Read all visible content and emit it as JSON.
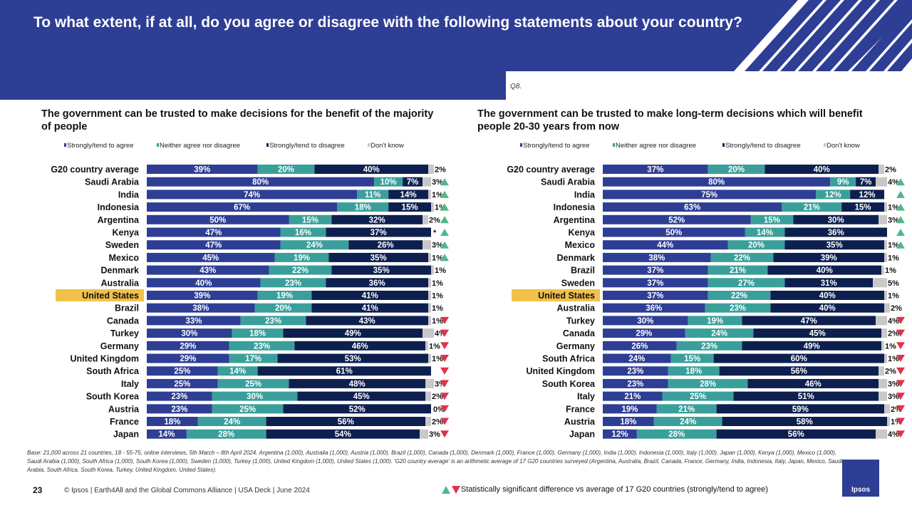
{
  "header": {
    "title": "To what extent, if at all, do you agree or disagree with the following statements about your country?"
  },
  "question_ref": "Q8.",
  "legend": [
    "Strongly/tend to agree",
    "Neither agree nor disagree",
    "Strongly/tend to disagree",
    "Don't know"
  ],
  "colors": {
    "agree": "#2e3e94",
    "neither": "#3a9f9a",
    "disagree": "#0d1f4f",
    "dontknow": "#c8c8c8",
    "up": "#52b788",
    "down": "#e0334a",
    "highlight": "#f0c14b"
  },
  "highlight_country": "United States",
  "chart_data": [
    {
      "type": "bar",
      "stacked": true,
      "orientation": "horizontal",
      "title": "The government can be trusted to make decisions for the benefit of the majority of people",
      "series_names": [
        "Strongly/tend to agree",
        "Neither agree nor disagree",
        "Strongly/tend to disagree",
        "Don't know"
      ],
      "rows": [
        {
          "c": "G20 country average",
          "v": [
            39,
            20,
            40,
            2
          ],
          "l": [
            "39%",
            "20%",
            "40%",
            "2%"
          ],
          "s": ""
        },
        {
          "c": "Saudi Arabia",
          "v": [
            80,
            10,
            7,
            3
          ],
          "l": [
            "80%",
            "10%",
            "7%",
            "3%"
          ],
          "s": "up"
        },
        {
          "c": "India",
          "v": [
            74,
            11,
            14,
            1
          ],
          "l": [
            "74%",
            "11%",
            "14%",
            "1%"
          ],
          "s": "up"
        },
        {
          "c": "Indonesia",
          "v": [
            67,
            18,
            15,
            1
          ],
          "l": [
            "67%",
            "18%",
            "15%",
            "1%"
          ],
          "s": "up"
        },
        {
          "c": "Argentina",
          "v": [
            50,
            15,
            32,
            2
          ],
          "l": [
            "50%",
            "15%",
            "32%",
            "2%"
          ],
          "s": "up"
        },
        {
          "c": "Kenya",
          "v": [
            47,
            16,
            37,
            0
          ],
          "l": [
            "47%",
            "16%",
            "37%",
            "*"
          ],
          "s": "up"
        },
        {
          "c": "Sweden",
          "v": [
            47,
            24,
            26,
            3
          ],
          "l": [
            "47%",
            "24%",
            "26%",
            "3%"
          ],
          "s": "up"
        },
        {
          "c": "Mexico",
          "v": [
            45,
            19,
            35,
            1
          ],
          "l": [
            "45%",
            "19%",
            "35%",
            "1%"
          ],
          "s": "up"
        },
        {
          "c": "Denmark",
          "v": [
            43,
            22,
            35,
            1
          ],
          "l": [
            "43%",
            "22%",
            "35%",
            "1%"
          ],
          "s": ""
        },
        {
          "c": "Australia",
          "v": [
            40,
            23,
            36,
            1
          ],
          "l": [
            "40%",
            "23%",
            "36%",
            "1%"
          ],
          "s": ""
        },
        {
          "c": "United States",
          "v": [
            39,
            19,
            41,
            1
          ],
          "l": [
            "39%",
            "19%",
            "41%",
            "1%"
          ],
          "s": ""
        },
        {
          "c": "Brazil",
          "v": [
            38,
            20,
            41,
            1
          ],
          "l": [
            "38%",
            "20%",
            "41%",
            "1%"
          ],
          "s": ""
        },
        {
          "c": "Canada",
          "v": [
            33,
            23,
            43,
            1
          ],
          "l": [
            "33%",
            "23%",
            "43%",
            "1%"
          ],
          "s": "down"
        },
        {
          "c": "Turkey",
          "v": [
            30,
            18,
            49,
            4
          ],
          "l": [
            "30%",
            "18%",
            "49%",
            "4%"
          ],
          "s": "down"
        },
        {
          "c": "Germany",
          "v": [
            29,
            23,
            46,
            1
          ],
          "l": [
            "29%",
            "23%",
            "46%",
            "1%"
          ],
          "s": "down"
        },
        {
          "c": "United Kingdom",
          "v": [
            29,
            17,
            53,
            1
          ],
          "l": [
            "29%",
            "17%",
            "53%",
            "1%"
          ],
          "s": "down"
        },
        {
          "c": "South Africa",
          "v": [
            25,
            14,
            61,
            0
          ],
          "l": [
            "25%",
            "14%",
            "61%",
            ""
          ],
          "s": "down"
        },
        {
          "c": "Italy",
          "v": [
            25,
            25,
            48,
            3
          ],
          "l": [
            "25%",
            "25%",
            "48%",
            "3%"
          ],
          "s": "down"
        },
        {
          "c": "South Korea",
          "v": [
            23,
            30,
            45,
            2
          ],
          "l": [
            "23%",
            "30%",
            "45%",
            "2%"
          ],
          "s": "down"
        },
        {
          "c": "Austria",
          "v": [
            23,
            25,
            52,
            0
          ],
          "l": [
            "23%",
            "25%",
            "52%",
            "0%"
          ],
          "s": "down"
        },
        {
          "c": "France",
          "v": [
            18,
            24,
            56,
            2
          ],
          "l": [
            "18%",
            "24%",
            "56%",
            "2%"
          ],
          "s": "down"
        },
        {
          "c": "Japan",
          "v": [
            14,
            28,
            54,
            3
          ],
          "l": [
            "14%",
            "28%",
            "54%",
            "3%"
          ],
          "s": "down"
        }
      ]
    },
    {
      "type": "bar",
      "stacked": true,
      "orientation": "horizontal",
      "title": "The government can be trusted to make long-term decisions which will benefit people 20-30 years from now",
      "series_names": [
        "Strongly/tend to agree",
        "Neither agree nor disagree",
        "Strongly/tend to disagree",
        "Don't know"
      ],
      "rows": [
        {
          "c": "G20 country average",
          "v": [
            37,
            20,
            40,
            2
          ],
          "l": [
            "37%",
            "20%",
            "40%",
            "2%"
          ],
          "s": ""
        },
        {
          "c": "Saudi Arabia",
          "v": [
            80,
            9,
            7,
            4
          ],
          "l": [
            "80%",
            "9%",
            "7%",
            "4%"
          ],
          "s": "up"
        },
        {
          "c": "India",
          "v": [
            75,
            12,
            12,
            0
          ],
          "l": [
            "75%",
            "12%",
            "12%",
            ""
          ],
          "s": "up"
        },
        {
          "c": "Indonesia",
          "v": [
            63,
            21,
            15,
            1
          ],
          "l": [
            "63%",
            "21%",
            "15%",
            "1%"
          ],
          "s": "up"
        },
        {
          "c": "Argentina",
          "v": [
            52,
            15,
            30,
            3
          ],
          "l": [
            "52%",
            "15%",
            "30%",
            "3%"
          ],
          "s": "up"
        },
        {
          "c": "Kenya",
          "v": [
            50,
            14,
            36,
            0
          ],
          "l": [
            "50%",
            "14%",
            "36%",
            ""
          ],
          "s": "up"
        },
        {
          "c": "Mexico",
          "v": [
            44,
            20,
            35,
            1
          ],
          "l": [
            "44%",
            "20%",
            "35%",
            "1%"
          ],
          "s": "up"
        },
        {
          "c": "Denmark",
          "v": [
            38,
            22,
            39,
            1
          ],
          "l": [
            "38%",
            "22%",
            "39%",
            "1%"
          ],
          "s": ""
        },
        {
          "c": "Brazil",
          "v": [
            37,
            21,
            40,
            1
          ],
          "l": [
            "37%",
            "21%",
            "40%",
            "1%"
          ],
          "s": ""
        },
        {
          "c": "Sweden",
          "v": [
            37,
            27,
            31,
            5
          ],
          "l": [
            "37%",
            "27%",
            "31%",
            "5%"
          ],
          "s": ""
        },
        {
          "c": "United States",
          "v": [
            37,
            22,
            40,
            1
          ],
          "l": [
            "37%",
            "22%",
            "40%",
            "1%"
          ],
          "s": ""
        },
        {
          "c": "Australia",
          "v": [
            36,
            23,
            40,
            2
          ],
          "l": [
            "36%",
            "23%",
            "40%",
            "2%"
          ],
          "s": ""
        },
        {
          "c": "Turkey",
          "v": [
            30,
            19,
            47,
            4
          ],
          "l": [
            "30%",
            "19%",
            "47%",
            "4%"
          ],
          "s": "down"
        },
        {
          "c": "Canada",
          "v": [
            29,
            24,
            45,
            2
          ],
          "l": [
            "29%",
            "24%",
            "45%",
            "2%"
          ],
          "s": "down"
        },
        {
          "c": "Germany",
          "v": [
            26,
            23,
            49,
            1
          ],
          "l": [
            "26%",
            "23%",
            "49%",
            "1%"
          ],
          "s": "down"
        },
        {
          "c": "South Africa",
          "v": [
            24,
            15,
            60,
            1
          ],
          "l": [
            "24%",
            "15%",
            "60%",
            "1%"
          ],
          "s": "down"
        },
        {
          "c": "United Kingdom",
          "v": [
            23,
            18,
            56,
            2
          ],
          "l": [
            "23%",
            "18%",
            "56%",
            "2%"
          ],
          "s": "down"
        },
        {
          "c": "South Korea",
          "v": [
            23,
            28,
            46,
            3
          ],
          "l": [
            "23%",
            "28%",
            "46%",
            "3%"
          ],
          "s": "down"
        },
        {
          "c": "Italy",
          "v": [
            21,
            25,
            51,
            3
          ],
          "l": [
            "21%",
            "25%",
            "51%",
            "3%"
          ],
          "s": "down"
        },
        {
          "c": "France",
          "v": [
            19,
            21,
            59,
            2
          ],
          "l": [
            "19%",
            "21%",
            "59%",
            "2%"
          ],
          "s": "down"
        },
        {
          "c": "Austria",
          "v": [
            18,
            24,
            58,
            1
          ],
          "l": [
            "18%",
            "24%",
            "58%",
            "1%"
          ],
          "s": "down"
        },
        {
          "c": "Japan",
          "v": [
            12,
            28,
            56,
            4
          ],
          "l": [
            "12%",
            "28%",
            "56%",
            "4%"
          ],
          "s": "down"
        }
      ]
    }
  ],
  "base_note": "Base: 21,000 across 21 countries, 18 - 55-75, online interviews, 5th March – 8th April 2024. Argentina (1,000), Australia (1,000), Austria (1,000), Brazil (1,000), Canada (1,000), Denmark (1,000), France (1,000), Germany (1,000), India (1,000), Indonesia (1,000), Italy (1,000), Japan (1,000), Kenya (1,000), Mexico (1,000), Saudi Arabia (1,000), South Africa (1,000), South Korea (1,000), Sweden (1,000), Turkey (1,000), United Kingdom (1,000), United States (1,000). 'G20 country average' is an arithmetic average of 17 G20 countries surveyed (Argentina, Australia, Brazil, Canada, France, Germany, India, Indonesia, Italy, Japan, Mexico, Saudi Arabia, South Africa, South Korea, Turkey, United Kingdom, United States).",
  "footer": {
    "page_number": "23",
    "copyright": "© Ipsos | Earth4All and the Global Commons Alliance | USA Deck | June 2024",
    "significance_note": "Statistically significant difference vs average of 17 G20 countries (strongly/tend to agree)"
  },
  "logo_text": "Ipsos"
}
